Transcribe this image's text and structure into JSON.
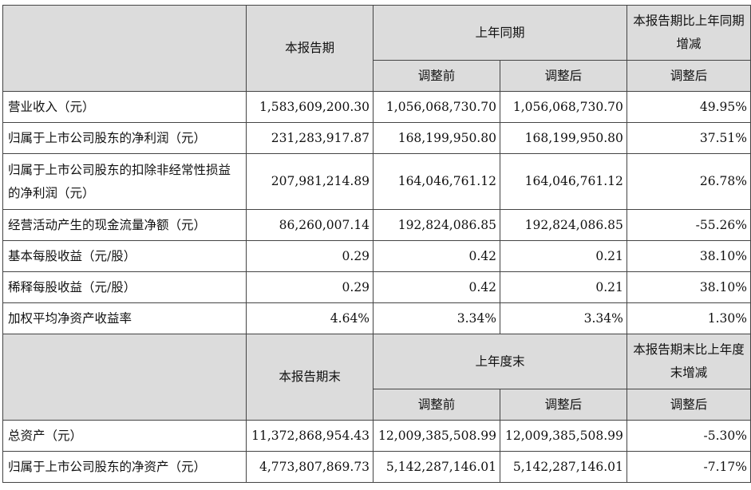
{
  "table1": {
    "header": {
      "current": "本报告期",
      "prior_group": "上年同期",
      "change": "本报告期比上年同期增减",
      "before_adj": "调整前",
      "after_adj": "调整后",
      "change_after_adj": "调整后"
    },
    "rows": [
      {
        "label": "营业收入（元）",
        "current": "1,583,609,200.30",
        "before": "1,056,068,730.70",
        "after": "1,056,068,730.70",
        "change": "49.95%"
      },
      {
        "label": "归属于上市公司股东的净利润（元）",
        "current": "231,283,917.87",
        "before": "168,199,950.80",
        "after": "168,199,950.80",
        "change": "37.51%"
      },
      {
        "label": "归属于上市公司股东的扣除非经常性损益的净利润（元）",
        "current": "207,981,214.89",
        "before": "164,046,761.12",
        "after": "164,046,761.12",
        "change": "26.78%"
      },
      {
        "label": "经营活动产生的现金流量净额（元）",
        "current": "86,260,007.14",
        "before": "192,824,086.85",
        "after": "192,824,086.85",
        "change": "-55.26%"
      },
      {
        "label": "基本每股收益（元/股）",
        "current": "0.29",
        "before": "0.42",
        "after": "0.21",
        "change": "38.10%"
      },
      {
        "label": "稀释每股收益（元/股）",
        "current": "0.29",
        "before": "0.42",
        "after": "0.21",
        "change": "38.10%"
      },
      {
        "label": "加权平均净资产收益率",
        "current": "4.64%",
        "before": "3.34%",
        "after": "3.34%",
        "change": "1.30%"
      }
    ]
  },
  "table2": {
    "header": {
      "current": "本报告期末",
      "prior_group": "上年度末",
      "change": "本报告期末比上年度末增减",
      "before_adj": "调整前",
      "after_adj": "调整后",
      "change_after_adj": "调整后"
    },
    "rows": [
      {
        "label": "总资产（元）",
        "current": "11,372,868,954.43",
        "before": "12,009,385,508.99",
        "after": "12,009,385,508.99",
        "change": "-5.30%"
      },
      {
        "label": "归属于上市公司股东的净资产（元）",
        "current": "4,773,807,869.73",
        "before": "5,142,287,146.01",
        "after": "5,142,287,146.01",
        "change": "-7.17%"
      }
    ]
  }
}
